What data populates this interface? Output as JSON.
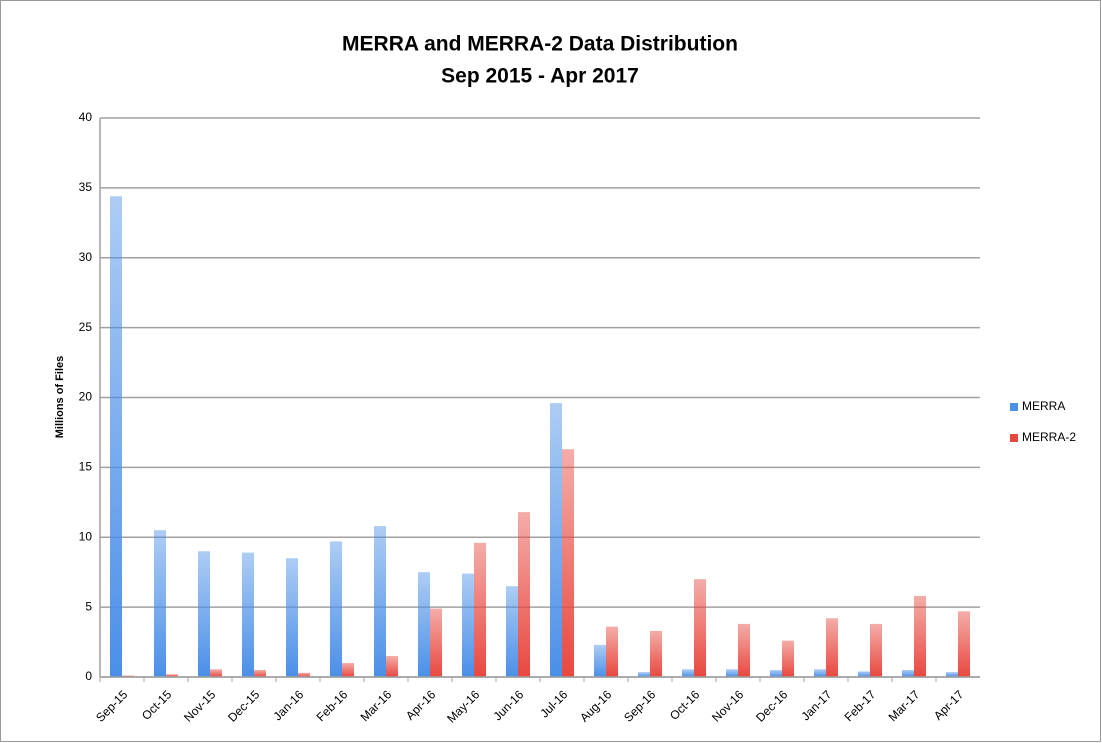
{
  "chart_data": {
    "type": "bar",
    "title": "MERRA and MERRA-2 Data Distribution",
    "subtitle": "Sep 2015 - Apr 2017",
    "y_label": "Millions of Files",
    "categories": [
      "Sep-15",
      "Oct-15",
      "Nov-15",
      "Dec-15",
      "Jan-16",
      "Feb-16",
      "Mar-16",
      "Apr-16",
      "May-16",
      "Jun-16",
      "Jul-16",
      "Aug-16",
      "Sep-16",
      "Oct-16",
      "Nov-16",
      "Dec-16",
      "Jan-17",
      "Feb-17",
      "Mar-17",
      "Apr-17"
    ],
    "series": [
      {
        "name": "MERRA",
        "color": "#4a8fe8",
        "values": [
          34.4,
          10.5,
          9.0,
          8.9,
          8.5,
          9.7,
          10.8,
          7.5,
          7.4,
          6.5,
          19.6,
          2.3,
          0.35,
          0.55,
          0.55,
          0.5,
          0.55,
          0.4,
          0.5,
          0.35
        ]
      },
      {
        "name": "MERRA-2",
        "color": "#e8483f",
        "values": [
          0.1,
          0.2,
          0.55,
          0.5,
          0.3,
          1.0,
          1.5,
          4.9,
          9.6,
          11.8,
          16.3,
          3.6,
          3.3,
          7.0,
          3.8,
          2.6,
          4.2,
          3.8,
          5.8,
          4.7
        ]
      }
    ],
    "ylim": [
      0,
      40
    ],
    "yticks": [
      0,
      5,
      10,
      15,
      20,
      25,
      30,
      35,
      40
    ],
    "grid": true,
    "legend": "right"
  }
}
